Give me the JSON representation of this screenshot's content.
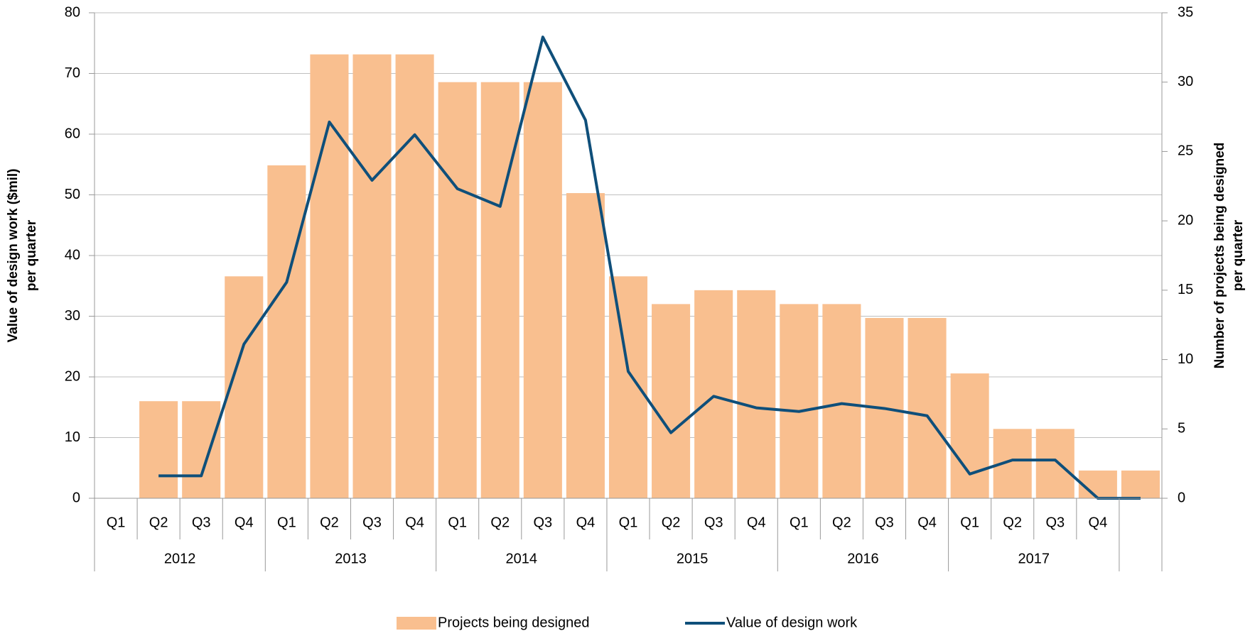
{
  "chart_data": {
    "type": "bar-line",
    "categories": [
      "Q1",
      "Q2",
      "Q3",
      "Q4",
      "Q1",
      "Q2",
      "Q3",
      "Q4",
      "Q1",
      "Q2",
      "Q3",
      "Q4",
      "Q1",
      "Q2",
      "Q3",
      "Q4",
      "Q1",
      "Q2",
      "Q3",
      "Q4",
      "Q1",
      "Q2",
      "Q3",
      "Q4",
      null
    ],
    "years": [
      "2012",
      "2013",
      "2014",
      "2015",
      "2016",
      "2017"
    ],
    "series": [
      {
        "name": "Projects being designed",
        "type": "bar",
        "axis": "y2",
        "color": "#f9bf8f",
        "values": [
          null,
          7,
          7,
          16,
          24,
          32,
          32,
          32,
          30,
          30,
          30,
          22,
          16,
          14,
          15,
          15,
          14,
          14,
          13,
          13,
          9,
          5,
          5,
          2,
          2
        ]
      },
      {
        "name": "Value of design work",
        "type": "line",
        "axis": "y",
        "color": "#0f4f7a",
        "values": [
          null,
          3.7,
          3.7,
          25.4,
          35.6,
          62,
          52.4,
          59.9,
          51,
          48.1,
          76,
          62.3,
          20.9,
          10.8,
          16.8,
          14.9,
          14.3,
          15.6,
          14.8,
          13.6,
          4,
          6.3,
          6.3,
          0,
          0
        ]
      }
    ],
    "ylabel": "Value of design work ($mil) per quarter",
    "y2label": "Number of projects being designed per quarter",
    "ylim": [
      0,
      80
    ],
    "yticks": [
      0,
      10,
      20,
      30,
      40,
      50,
      60,
      70,
      80
    ],
    "y2lim": [
      0,
      35
    ],
    "y2ticks": [
      0,
      5,
      10,
      15,
      20,
      25,
      30,
      35
    ],
    "grid": true,
    "legend": "bottom"
  }
}
